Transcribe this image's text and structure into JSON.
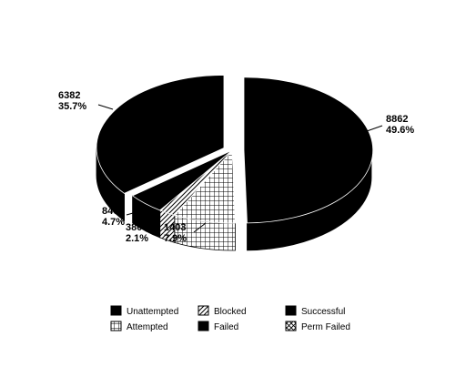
{
  "chart_data": {
    "type": "pie",
    "title": "",
    "slices": [
      {
        "label": "Successful",
        "value": 8862,
        "percent": "49.6%",
        "pattern": "solid"
      },
      {
        "label": "Perm Failed",
        "value": 0,
        "percent": "",
        "pattern": "cross"
      },
      {
        "label": "Attempted",
        "value": 1403,
        "percent": "7.9%",
        "pattern": "grid"
      },
      {
        "label": "Blocked",
        "value": 380,
        "percent": "2.1%",
        "pattern": "diag"
      },
      {
        "label": "Failed",
        "value": 840,
        "percent": "4.7%",
        "pattern": "solid"
      },
      {
        "label": "Unattempted",
        "value": 6382,
        "percent": "35.7%",
        "pattern": "solid"
      }
    ],
    "data_labels": [
      {
        "value": "8862",
        "percent": "49.6%"
      },
      {
        "value": "6382",
        "percent": "35.7%"
      },
      {
        "value": "840",
        "percent": "4.7%"
      },
      {
        "value": "380",
        "percent": "2.1%"
      },
      {
        "value": "1403",
        "percent": "7.9%"
      }
    ],
    "legend": {
      "placement": "bottom",
      "items": [
        {
          "label": "Unattempted",
          "pattern": "solid"
        },
        {
          "label": "Blocked",
          "pattern": "diag"
        },
        {
          "label": "Successful",
          "pattern": "solid"
        },
        {
          "label": "Attempted",
          "pattern": "grid"
        },
        {
          "label": "Failed",
          "pattern": "solid"
        },
        {
          "label": "Perm Failed",
          "pattern": "cross"
        }
      ]
    },
    "colors": {
      "fill": "#000000",
      "background": "#ffffff"
    }
  }
}
